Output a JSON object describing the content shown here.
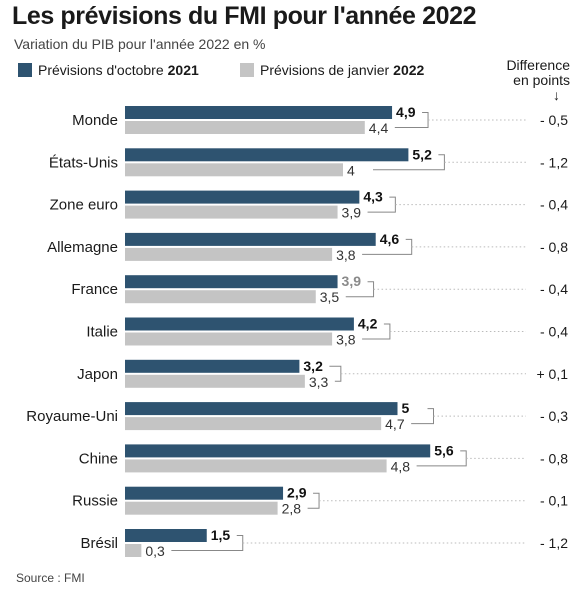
{
  "title": "Les prévisions du FMI pour l'année 2022",
  "subtitle": "Variation du PIB pour l'année 2022 en %",
  "legend": {
    "october": {
      "text": "Prévisions d'octobre ",
      "bold": "2021"
    },
    "january": {
      "text": "Prévisions de janvier ",
      "bold": "2022"
    }
  },
  "diff_header": {
    "line1": "Difference",
    "line2": "en points",
    "arrow": "↓"
  },
  "source": "Source : FMI",
  "colors": {
    "october": "#2e5370",
    "january": "#c4c4c4",
    "connector": "#888888",
    "dots": "#bbbbbb"
  },
  "chart_data": {
    "type": "bar",
    "orientation": "horizontal",
    "categories": [
      "Monde",
      "États-Unis",
      "Zone euro",
      "Allemagne",
      "France",
      "Italie",
      "Japon",
      "Royaume-Uni",
      "Chine",
      "Russie",
      "Brésil"
    ],
    "series": [
      {
        "name": "Prévisions d'octobre 2021",
        "values": [
          4.9,
          5.2,
          4.3,
          4.6,
          3.9,
          4.2,
          3.2,
          5,
          5.6,
          2.9,
          1.5
        ],
        "labels": [
          "4,9",
          "5,2",
          "4,3",
          "4,6",
          "3,9",
          "4,2",
          "3,2",
          "5",
          "5,6",
          "2,9",
          "1,5"
        ]
      },
      {
        "name": "Prévisions de janvier 2022",
        "values": [
          4.4,
          4,
          3.9,
          3.8,
          3.5,
          3.8,
          3.3,
          4.7,
          4.8,
          2.8,
          0.3
        ],
        "labels": [
          "4,4",
          "4",
          "3,9",
          "3,8",
          "3,5",
          "3,8",
          "3,3",
          "4,7",
          "4,8",
          "2,8",
          "0,3"
        ]
      }
    ],
    "difference": [
      "- 0,5",
      "- 1,2",
      "- 0,4",
      "- 0,8",
      "- 0,4",
      "- 0,4",
      "+ 0,1",
      "- 0,3",
      "- 0,8",
      "- 0,1",
      "- 1,2"
    ],
    "highlight_gray_label": [
      false,
      false,
      false,
      false,
      true,
      false,
      false,
      false,
      false,
      false,
      false
    ],
    "xlim": [
      0,
      5.6
    ]
  }
}
